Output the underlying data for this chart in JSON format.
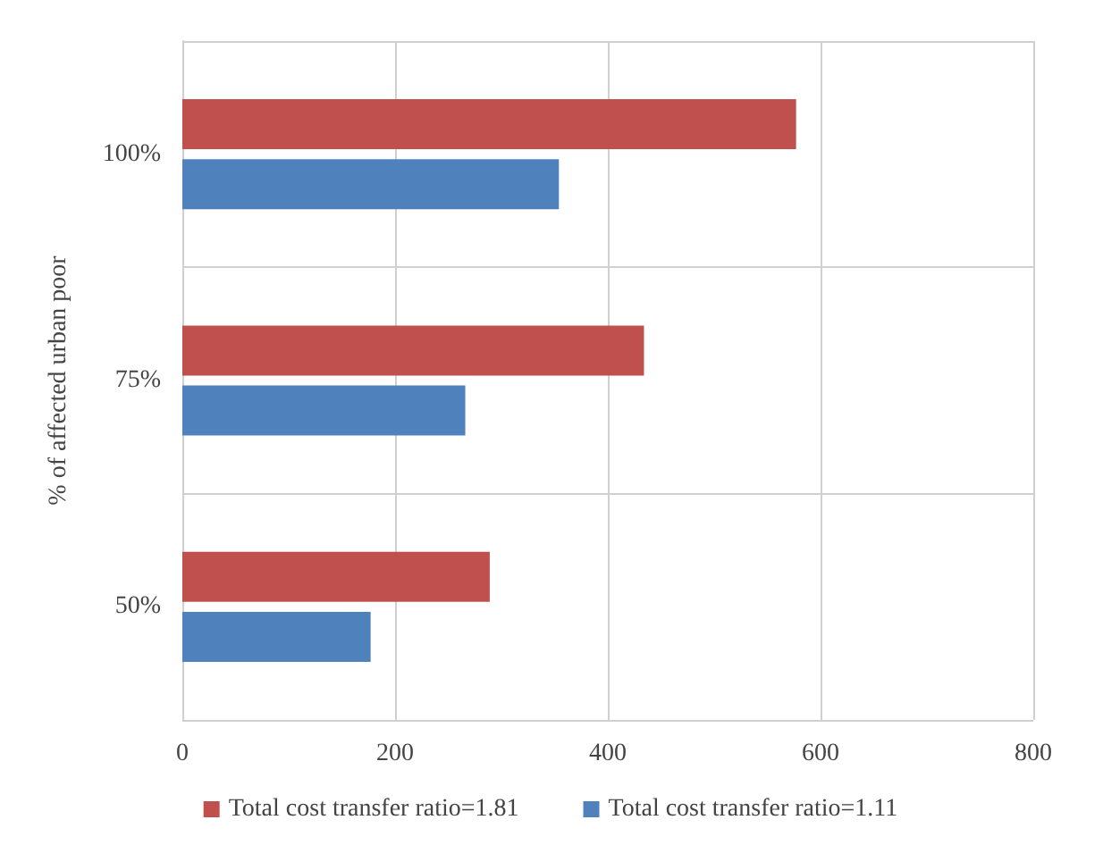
{
  "chart_data": {
    "type": "bar",
    "orientation": "horizontal",
    "ylabel": "% of affected urban poor",
    "categories": [
      "100%",
      "75%",
      "50%"
    ],
    "series": [
      {
        "name": "Total cost transfer ratio=1.81",
        "color": "#c0504d",
        "values": [
          577,
          434,
          289
        ]
      },
      {
        "name": "Total cost transfer ratio=1.11",
        "color": "#4f81bd",
        "values": [
          354,
          266,
          177
        ]
      }
    ],
    "xlim": [
      0,
      800
    ],
    "xticks": [
      0,
      200,
      400,
      600,
      800
    ],
    "grid": true,
    "legend": "bottom"
  }
}
